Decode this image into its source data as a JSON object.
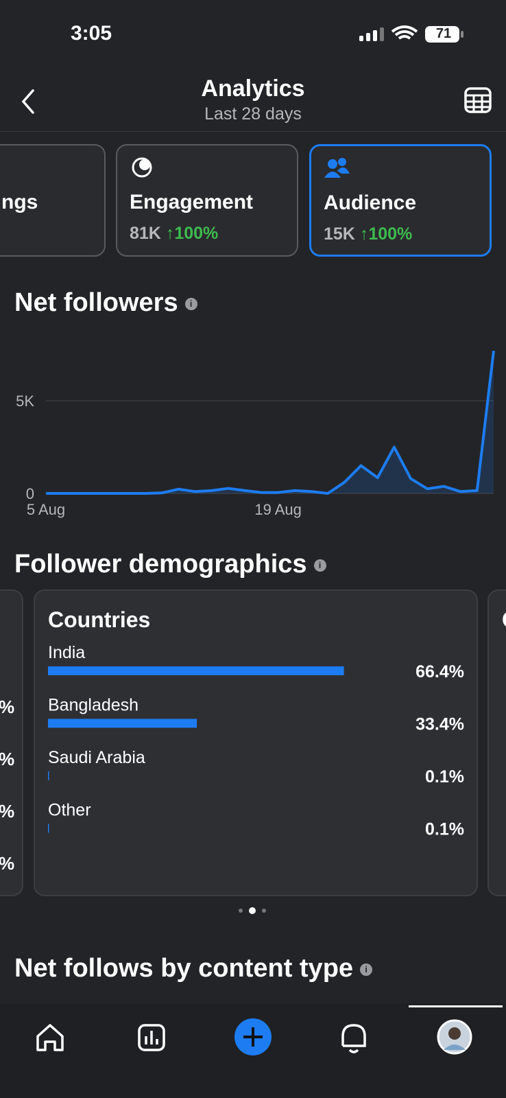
{
  "status_bar": {
    "time": "3:05",
    "battery": "71"
  },
  "header": {
    "title": "Analytics",
    "subtitle": "Last 28 days"
  },
  "cards": [
    {
      "label": "ngs"
    },
    {
      "label": "Engagement",
      "value": "81K",
      "change": "↑100%"
    },
    {
      "label": "Audience",
      "value": "15K",
      "change": "↑100%"
    }
  ],
  "net_followers": {
    "title": "Net followers",
    "chart_data": {
      "type": "line",
      "color": "#1d7cf2",
      "x": [
        "5 Aug",
        null,
        null,
        null,
        null,
        null,
        null,
        null,
        null,
        null,
        null,
        null,
        null,
        null,
        "19 Aug",
        null,
        null,
        null,
        null,
        null,
        null,
        null,
        null,
        null,
        null,
        null,
        null,
        null
      ],
      "values": [
        0,
        0,
        0,
        0,
        0,
        0,
        0,
        30,
        230,
        100,
        150,
        270,
        150,
        50,
        50,
        150,
        100,
        0,
        600,
        1500,
        850,
        2500,
        800,
        250,
        380,
        100,
        150,
        7700
      ],
      "ylim": [
        0,
        8000
      ],
      "yticks": [
        0,
        {
          "value": 5000,
          "label": "5K"
        }
      ],
      "grid": true
    }
  },
  "demographics": {
    "title": "Follower demographics",
    "left_card": {
      "values": [
        "%",
        "%",
        "%",
        "%"
      ]
    },
    "countries": {
      "title": "Countries",
      "chart_data": {
        "type": "bar",
        "color": "#1d7cf2",
        "categories": [
          "India",
          "Bangladesh",
          "Saudi Arabia",
          "Other"
        ],
        "values": [
          66.4,
          33.4,
          0.1,
          0.1
        ],
        "value_labels": [
          "66.4%",
          "33.4%",
          "0.1%",
          "0.1%"
        ]
      }
    },
    "right_card": {
      "title": "C"
    }
  },
  "content_type": {
    "title": "Net follows by content type"
  }
}
